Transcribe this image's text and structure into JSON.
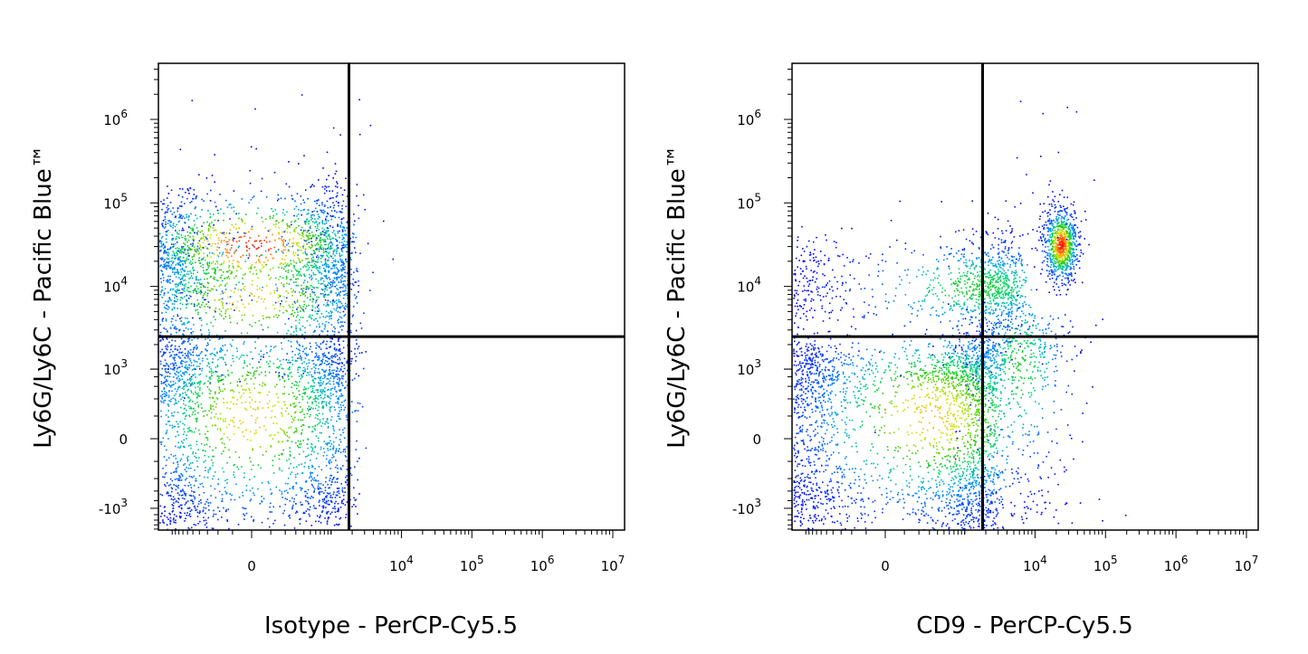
{
  "chart_data": [
    {
      "type": "scatter",
      "subtype": "flow-cytometry-density-dot-plot",
      "title": "",
      "xlabel": "Isotype - PerCP-Cy5.5",
      "ylabel": "Ly6G/Ly6C - Pacific Blue™",
      "x_scale": "biexponential",
      "y_scale": "biexponential",
      "x_ticks": [
        "0",
        "10^4",
        "10^5",
        "10^6",
        "10^7"
      ],
      "y_ticks": [
        "10^6",
        "10^5",
        "10^4",
        "10^3",
        "0",
        "-10^3"
      ],
      "gate": {
        "x": 1800,
        "y": 2500
      },
      "populations": [
        {
          "name": "",
          "x_center": 0,
          "y_center": 31000,
          "x_spread": 900,
          "y_spread_decades": 0.35,
          "count": 1400,
          "peak_density": "high"
        },
        {
          "name": "",
          "x_center": 0,
          "y_center": 8000,
          "x_spread": 1000,
          "y_spread_decades": 0.45,
          "count": 1200,
          "peak_density": "medium"
        },
        {
          "name": "",
          "x_center": 0,
          "y_center": 200,
          "x_spread": 900,
          "y_spread": 900,
          "count": 2300,
          "peak_density": "medium"
        }
      ],
      "grid": false,
      "legend": "none"
    },
    {
      "type": "scatter",
      "subtype": "flow-cytometry-density-dot-plot",
      "title": "",
      "xlabel": "CD9 - PerCP-Cy5.5",
      "ylabel": "Ly6G/Ly6C - Pacific Blue™",
      "x_scale": "biexponential",
      "y_scale": "biexponential",
      "x_ticks": [
        "0",
        "10^4",
        "10^5",
        "10^6",
        "10^7"
      ],
      "y_ticks": [
        "10^6",
        "10^5",
        "10^4",
        "10^3",
        "0",
        "-10^3"
      ],
      "gate": {
        "x": 1800,
        "y": 2500
      },
      "populations": [
        {
          "name": "",
          "x_center": 23000,
          "y_center": 32000,
          "x_spread_decades": 0.13,
          "y_spread_decades": 0.22,
          "count": 900,
          "peak_density": "high"
        },
        {
          "name": "",
          "x_center": 1200,
          "y_center": 10000,
          "x_spread": 2500,
          "y_spread_decades": 0.3,
          "count": 1300,
          "peak_density": "low"
        },
        {
          "name": "",
          "x_center": 300,
          "y_center": 200,
          "x_spread": 1300,
          "y_spread": 900,
          "count": 3000,
          "peak_density": "medium"
        },
        {
          "name": "",
          "x_center": 6000,
          "y_center": 1000,
          "x_spread_decades": 0.4,
          "y_spread": 1500,
          "count": 600,
          "peak_density": "low"
        }
      ],
      "grid": false,
      "legend": "none"
    }
  ],
  "colors": {
    "low_density": "#0000ff",
    "mid_density": "#00d000",
    "high_density": "#ff0000",
    "gate_line": "#000000"
  }
}
